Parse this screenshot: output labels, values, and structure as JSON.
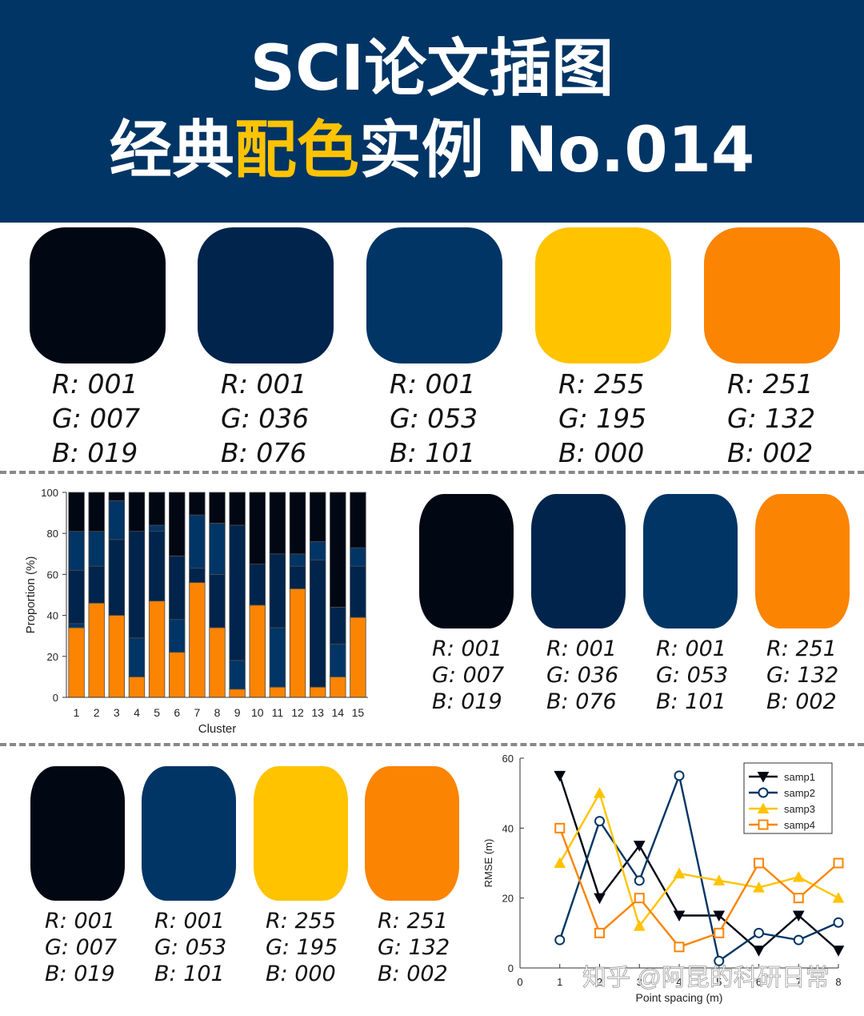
{
  "header": {
    "title_line1": "SCI论文插图",
    "title_line2_pre": "经典",
    "title_line2_highlight": "配色",
    "title_line2_post": "实例 No.014"
  },
  "palette_row1": [
    {
      "color": "#010713",
      "r": "R: 001",
      "g": "G: 007",
      "b": "B: 019"
    },
    {
      "color": "#01244C",
      "r": "R: 001",
      "g": "G: 036",
      "b": "B: 076"
    },
    {
      "color": "#013565",
      "r": "R: 001",
      "g": "G: 053",
      "b": "B: 101"
    },
    {
      "color": "#FFC300",
      "r": "R: 255",
      "g": "G: 195",
      "b": "B: 000"
    },
    {
      "color": "#FB8402",
      "r": "R: 251",
      "g": "G: 132",
      "b": "B: 002"
    }
  ],
  "palette_row2": [
    {
      "color": "#010713",
      "r": "R: 001",
      "g": "G: 007",
      "b": "B: 019"
    },
    {
      "color": "#01244C",
      "r": "R: 001",
      "g": "G: 036",
      "b": "B: 076"
    },
    {
      "color": "#013565",
      "r": "R: 001",
      "g": "G: 053",
      "b": "B: 101"
    },
    {
      "color": "#FB8402",
      "r": "R: 251",
      "g": "G: 132",
      "b": "B: 002"
    }
  ],
  "palette_row3": [
    {
      "color": "#010713",
      "r": "R: 001",
      "g": "G: 007",
      "b": "B: 019"
    },
    {
      "color": "#013565",
      "r": "R: 001",
      "g": "G: 053",
      "b": "B: 101"
    },
    {
      "color": "#FFC300",
      "r": "R: 255",
      "g": "G: 195",
      "b": "B: 000"
    },
    {
      "color": "#FB8402",
      "r": "R: 251",
      "g": "G: 132",
      "b": "B: 002"
    }
  ],
  "watermark": "知乎 @阿昆的科研日常",
  "chart_data": [
    {
      "type": "bar",
      "stacked": true,
      "xlabel": "Cluster",
      "ylabel": "Proportion (%)",
      "ylim": [
        0,
        100
      ],
      "yticks": [
        0,
        20,
        40,
        60,
        80,
        100
      ],
      "categories": [
        "1",
        "2",
        "3",
        "4",
        "5",
        "6",
        "7",
        "8",
        "9",
        "10",
        "11",
        "12",
        "13",
        "14",
        "15"
      ],
      "series": [
        {
          "color": "#FB8402",
          "values": [
            34,
            46,
            40,
            10,
            47,
            22,
            56,
            34,
            4,
            45,
            5,
            53,
            5,
            10,
            39
          ]
        },
        {
          "color": "#013565",
          "values": [
            2,
            0,
            0,
            19,
            0,
            16,
            0,
            0,
            14,
            0,
            29,
            0,
            0,
            16,
            0
          ]
        },
        {
          "color": "#01244C",
          "values": [
            26,
            18,
            37,
            52,
            34,
            31,
            7,
            26,
            66,
            20,
            36,
            11,
            62,
            18,
            25
          ]
        },
        {
          "color": "#013565",
          "values": [
            19,
            17,
            19,
            0,
            3,
            0,
            26,
            25,
            0,
            0,
            0,
            6,
            9,
            0,
            9
          ]
        },
        {
          "color": "#010713",
          "values": [
            19,
            19,
            4,
            19,
            16,
            31,
            11,
            15,
            16,
            35,
            30,
            30,
            24,
            56,
            27
          ]
        }
      ]
    },
    {
      "type": "line",
      "xlabel": "Point spacing (m)",
      "ylabel": "RMSE (m)",
      "xlim": [
        0,
        8
      ],
      "ylim": [
        0,
        60
      ],
      "xticks": [
        "0",
        "1",
        "2",
        "3",
        "4",
        "5",
        "6",
        "7",
        "8"
      ],
      "yticks": [
        0,
        20,
        40,
        60
      ],
      "x": [
        1,
        2,
        3,
        4,
        5,
        6,
        7,
        8
      ],
      "legend_position": "top-right",
      "series": [
        {
          "name": "samp1",
          "color": "#010713",
          "marker": "triangle-down",
          "values": [
            55,
            20,
            35,
            15,
            15,
            5,
            15,
            5
          ]
        },
        {
          "name": "samp2",
          "color": "#013565",
          "marker": "circle",
          "values": [
            8,
            42,
            25,
            55,
            2,
            10,
            8,
            13
          ]
        },
        {
          "name": "samp3",
          "color": "#FFC300",
          "marker": "triangle-up",
          "values": [
            30,
            50,
            12,
            27,
            25,
            23,
            26,
            20
          ]
        },
        {
          "name": "samp4",
          "color": "#FB8402",
          "marker": "square",
          "values": [
            40,
            10,
            20,
            6,
            10,
            30,
            20,
            30
          ]
        }
      ]
    }
  ]
}
